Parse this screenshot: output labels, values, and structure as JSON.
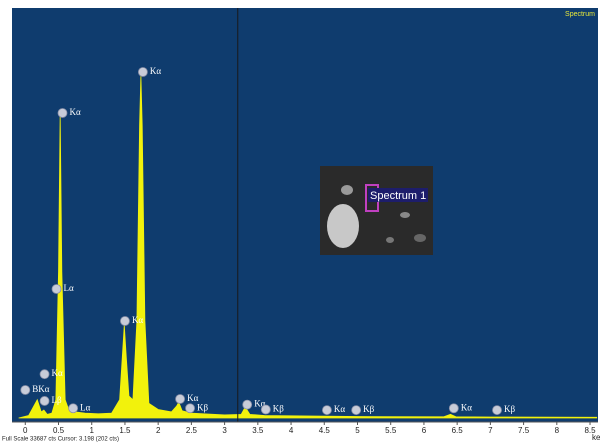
{
  "chart_data": {
    "type": "area",
    "title": "Spectrum",
    "inset_label": "Spectrum 1",
    "x_label": "ke",
    "status": "Full Scale 33687 cts Cursor: 3.198 (202 cts)",
    "cursor": 3.198,
    "color": "#f2f20c",
    "background": "#0f3c6e",
    "x": [
      -0.1,
      0.05,
      0.12,
      0.18,
      0.24,
      0.28,
      0.33,
      0.4,
      0.46,
      0.5,
      0.525,
      0.55,
      0.6,
      0.66,
      0.7,
      0.75,
      0.9,
      1.1,
      1.3,
      1.42,
      1.46,
      1.49,
      1.52,
      1.56,
      1.62,
      1.68,
      1.72,
      1.74,
      1.76,
      1.8,
      1.86,
      2.0,
      2.2,
      2.28,
      2.31,
      2.36,
      2.5,
      3.0,
      3.25,
      3.31,
      3.38,
      3.6,
      4.5,
      5.0,
      6.3,
      6.4,
      6.48,
      7.0,
      8.6
    ],
    "values": [
      0,
      200,
      900,
      1500,
      500,
      650,
      300,
      400,
      1500,
      12000,
      25100,
      12000,
      1500,
      600,
      800,
      500,
      400,
      350,
      400,
      1500,
      5000,
      7640,
      5000,
      1800,
      1500,
      8000,
      24000,
      28200,
      24000,
      8000,
      1200,
      700,
      500,
      1000,
      1300,
      600,
      400,
      250,
      300,
      900,
      300,
      200,
      150,
      120,
      100,
      300,
      100,
      80,
      60
    ],
    "xlim": [
      -0.2,
      8.62
    ],
    "ylim": [
      0,
      33687
    ],
    "xticks": [
      0,
      0.5,
      1,
      1.5,
      2,
      2.5,
      3,
      3.5,
      4,
      4.5,
      5,
      5.5,
      6,
      6.5,
      7,
      7.5,
      8,
      8.5
    ],
    "annotations": [
      {
        "text": "Kα",
        "x": 0.56,
        "y": 25060
      },
      {
        "text": "Kα",
        "x": 1.77,
        "y": 28430
      },
      {
        "text": "Lα",
        "x": 0.47,
        "y": 10600
      },
      {
        "text": "Kα",
        "x": 1.5,
        "y": 7970
      },
      {
        "text": "BKα",
        "x": 0.0,
        "y": 2300
      },
      {
        "text": "Kα",
        "x": 0.29,
        "y": 3600
      },
      {
        "text": "Lβ",
        "x": 0.29,
        "y": 1400
      },
      {
        "text": "Lα",
        "x": 0.72,
        "y": 800
      },
      {
        "text": "Kα",
        "x": 2.33,
        "y": 1560
      },
      {
        "text": "Kβ",
        "x": 2.48,
        "y": 800
      },
      {
        "text": "Kα",
        "x": 3.34,
        "y": 1100
      },
      {
        "text": "Kβ",
        "x": 3.62,
        "y": 700
      },
      {
        "text": "Kα",
        "x": 4.54,
        "y": 650
      },
      {
        "text": "Kβ",
        "x": 4.98,
        "y": 650
      },
      {
        "text": "Kα",
        "x": 6.45,
        "y": 800
      },
      {
        "text": "Kβ",
        "x": 7.1,
        "y": 650
      }
    ]
  }
}
